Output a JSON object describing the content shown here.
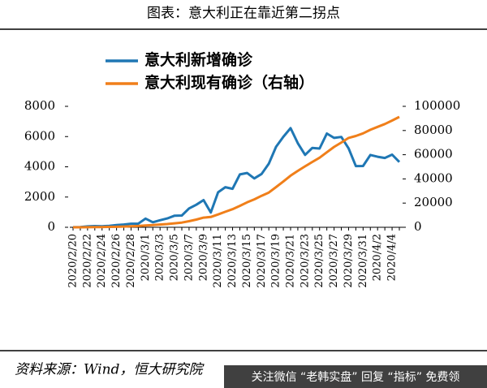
{
  "title": "图表：意大利正在靠近第二拐点",
  "source": "资料来源：Wind，恒大研究院",
  "watermark": "关注微信 “老韩实盘” 回复 “指标” 免费领",
  "chart_data": {
    "type": "line",
    "categories": [
      "2020/2/20",
      null,
      "2020/2/22",
      null,
      "2020/2/24",
      null,
      "2020/2/26",
      null,
      "2020/2/28",
      null,
      "2020/3/1",
      null,
      "2020/3/3",
      null,
      "2020/3/5",
      null,
      "2020/3/7",
      null,
      "2020/3/9",
      null,
      "2020/3/11",
      null,
      "2020/3/13",
      null,
      "2020/3/15",
      null,
      "2020/3/17",
      null,
      "2020/3/19",
      null,
      "2020/3/21",
      null,
      "2020/3/23",
      null,
      "2020/3/25",
      null,
      "2020/3/27",
      null,
      "2020/3/29",
      null,
      "2020/3/31",
      null,
      "2020/4/2",
      null,
      "2020/4/4",
      null
    ],
    "series": [
      {
        "name": "意大利新增确诊",
        "color": "#1f77b4",
        "values": [
          3,
          17,
          58,
          78,
          72,
          94,
          147,
          185,
          234,
          239,
          573,
          335,
          466,
          587,
          769,
          778,
          1247,
          1492,
          1797,
          977,
          2313,
          2651,
          2547,
          3497,
          3590,
          3233,
          3526,
          4207,
          5322,
          5986,
          6557,
          5560,
          4789,
          5249,
          5210,
          6203,
          5909,
          5974,
          5217,
          4050,
          4053,
          4782,
          4668,
          4585,
          4805,
          4316
        ]
      },
      {
        "name": "意大利现有确诊（右轴）",
        "color": "#f07f1a",
        "axis": "y2",
        "values": [
          3,
          17,
          76,
          150,
          221,
          311,
          385,
          588,
          821,
          1049,
          1577,
          1835,
          2263,
          2706,
          3296,
          3916,
          5061,
          6387,
          7985,
          8514,
          10590,
          12839,
          14955,
          17750,
          20603,
          23073,
          26062,
          28710,
          33190,
          37860,
          42681,
          46638,
          50418,
          54030,
          57521,
          62013,
          66414,
          70065,
          73880,
          75528,
          77635,
          80572,
          83049,
          85388,
          88274,
          91246
        ]
      }
    ],
    "ylim": [
      0,
      8000
    ],
    "yticks": [
      0,
      2000,
      4000,
      6000,
      8000
    ],
    "y2lim": [
      0,
      100000
    ],
    "y2ticks": [
      0,
      20000,
      40000,
      60000,
      80000,
      100000
    ]
  }
}
